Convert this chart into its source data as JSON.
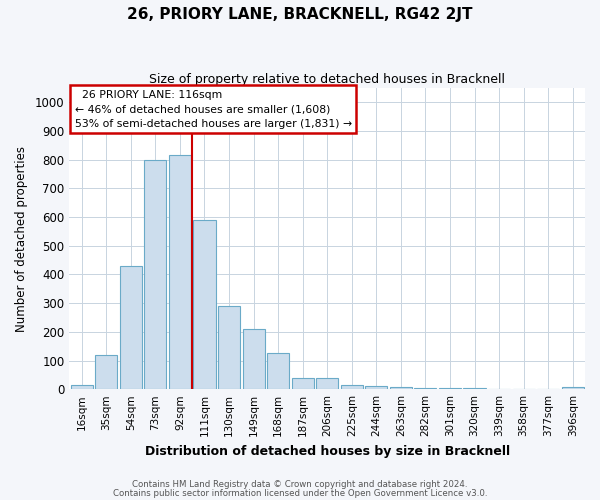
{
  "title": "26, PRIORY LANE, BRACKNELL, RG42 2JT",
  "subtitle": "Size of property relative to detached houses in Bracknell",
  "xlabel": "Distribution of detached houses by size in Bracknell",
  "ylabel": "Number of detached properties",
  "bar_labels": [
    "16sqm",
    "35sqm",
    "54sqm",
    "73sqm",
    "92sqm",
    "111sqm",
    "130sqm",
    "149sqm",
    "168sqm",
    "187sqm",
    "206sqm",
    "225sqm",
    "244sqm",
    "263sqm",
    "282sqm",
    "301sqm",
    "320sqm",
    "339sqm",
    "358sqm",
    "377sqm",
    "396sqm"
  ],
  "bar_values": [
    15,
    120,
    430,
    800,
    815,
    590,
    290,
    210,
    125,
    40,
    40,
    15,
    10,
    8,
    5,
    5,
    3,
    2,
    2,
    1,
    8
  ],
  "bar_color": "#ccdded",
  "bar_edge_color": "#6aaac8",
  "ylim": [
    0,
    1050
  ],
  "yticks": [
    0,
    100,
    200,
    300,
    400,
    500,
    600,
    700,
    800,
    900,
    1000
  ],
  "vline_x_index": 4.5,
  "vline_color": "#cc0000",
  "annotation_title": "26 PRIORY LANE: 116sqm",
  "annotation_line1": "← 46% of detached houses are smaller (1,608)",
  "annotation_line2": "53% of semi-detached houses are larger (1,831) →",
  "annotation_box_color": "#ffffff",
  "annotation_box_edge": "#cc0000",
  "footer1": "Contains HM Land Registry data © Crown copyright and database right 2024.",
  "footer2": "Contains public sector information licensed under the Open Government Licence v3.0.",
  "background_color": "#f4f6fa",
  "plot_background": "#ffffff",
  "grid_color": "#c8d4e0"
}
